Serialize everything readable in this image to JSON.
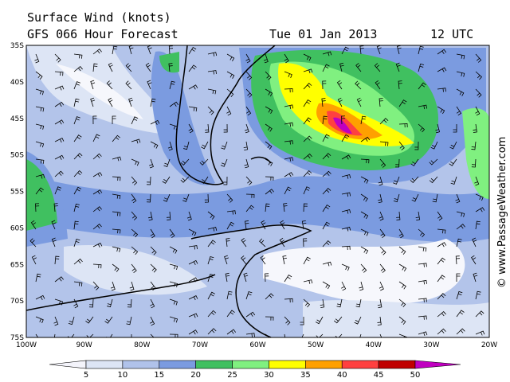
{
  "header": {
    "title": "Surface Wind (knots)",
    "forecast": "GFS 066 Hour Forecast",
    "date": "Tue 01 Jan 2013",
    "time": "12 UTC"
  },
  "map": {
    "lat_labels": [
      "35S",
      "40S",
      "45S",
      "50S",
      "55S",
      "60S",
      "65S",
      "70S",
      "75S"
    ],
    "lon_labels": [
      "100W",
      "90W",
      "80W",
      "70W",
      "60W",
      "50W",
      "40W",
      "30W",
      "20W"
    ]
  },
  "legend": {
    "ticks": [
      5,
      10,
      15,
      20,
      25,
      30,
      35,
      40,
      45,
      50
    ]
  },
  "credit": "© www.PassageWeather.com"
}
